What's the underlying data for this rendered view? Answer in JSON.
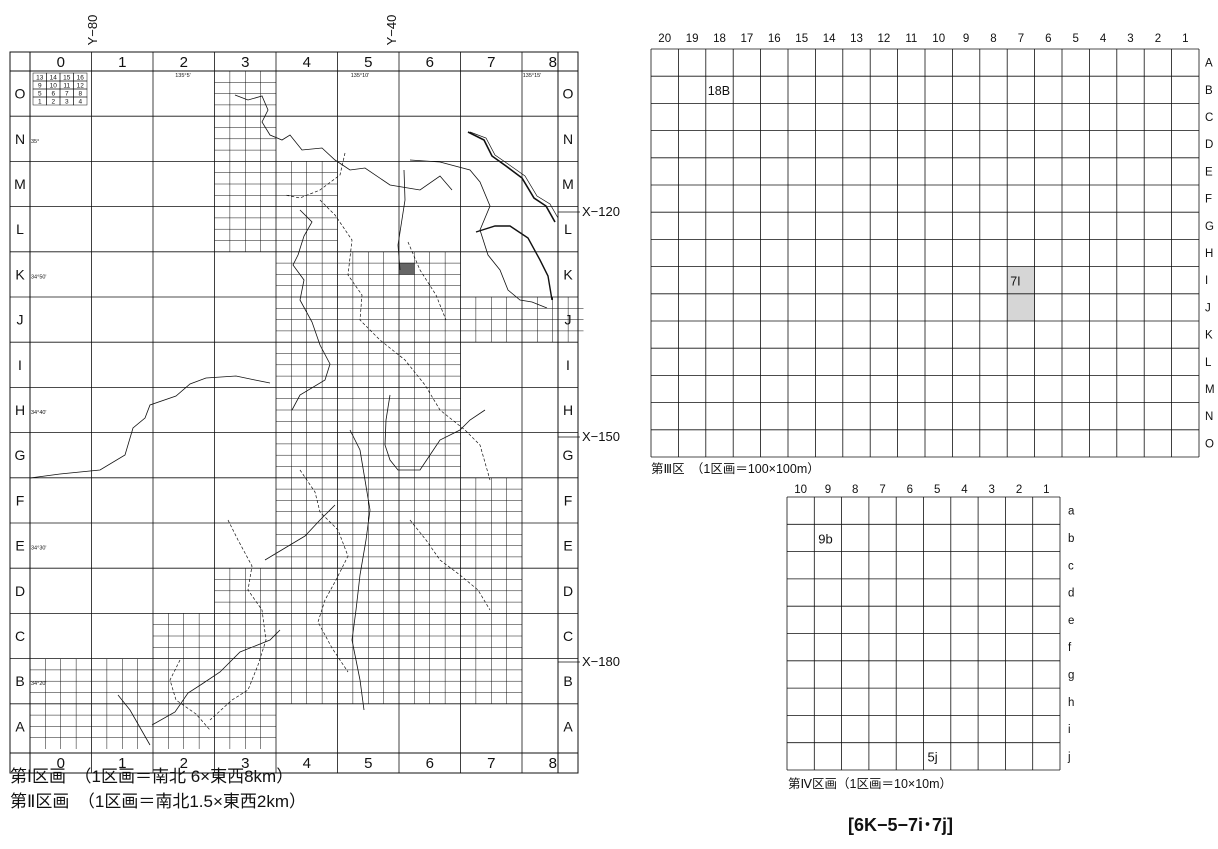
{
  "map1": {
    "col_labels": [
      "0",
      "1",
      "2",
      "3",
      "4",
      "5",
      "6",
      "7",
      "8"
    ],
    "row_labels": [
      "O",
      "N",
      "M",
      "L",
      "K",
      "J",
      "I",
      "H",
      "G",
      "F",
      "E",
      "D",
      "C",
      "B",
      "A"
    ],
    "y_labels": [
      "Y−80",
      "Y−40"
    ],
    "x_labels": [
      "X−120",
      "X−150",
      "X−180"
    ],
    "lon_labels": [
      "135°5'",
      "135°10'",
      "135°15'"
    ],
    "lat_labels": [
      "35°",
      "34°50'",
      "34°40'",
      "34°30'",
      "34°20'"
    ],
    "sub_numbers": [
      "13",
      "14",
      "15",
      "16",
      "9",
      "10",
      "11",
      "12",
      "5",
      "6",
      "7",
      "8",
      "1",
      "2",
      "3",
      "4"
    ],
    "caption1": "第Ⅰ区画　（1区画＝南北 6×東西8km）",
    "caption2": "第Ⅱ区画　（1区画＝南北1.5×東西2km）",
    "colors": {
      "highlight": "#666666",
      "line": "#111111"
    }
  },
  "grid3": {
    "col_labels": [
      "20",
      "19",
      "18",
      "17",
      "16",
      "15",
      "14",
      "13",
      "12",
      "11",
      "10",
      "9",
      "8",
      "7",
      "6",
      "5",
      "4",
      "3",
      "2",
      "1"
    ],
    "row_labels": [
      "A",
      "B",
      "C",
      "D",
      "E",
      "F",
      "G",
      "H",
      "I",
      "J",
      "K",
      "L",
      "M",
      "N",
      "O"
    ],
    "cell_label_18B": "18B",
    "cell_label_7I": "7I",
    "caption": "第Ⅲ区　（1区画＝100×100m）",
    "colors": {
      "highlight": "#d6d6d6"
    }
  },
  "grid4": {
    "col_labels": [
      "10",
      "9",
      "8",
      "7",
      "6",
      "5",
      "4",
      "3",
      "2",
      "1"
    ],
    "row_labels": [
      "a",
      "b",
      "c",
      "d",
      "e",
      "f",
      "g",
      "h",
      "i",
      "j"
    ],
    "cell_label_9b": "9b",
    "cell_label_5j": "5j",
    "caption": "第Ⅳ区画（1区画＝10×10m）"
  },
  "code": "[6K−5−7i･7j]"
}
